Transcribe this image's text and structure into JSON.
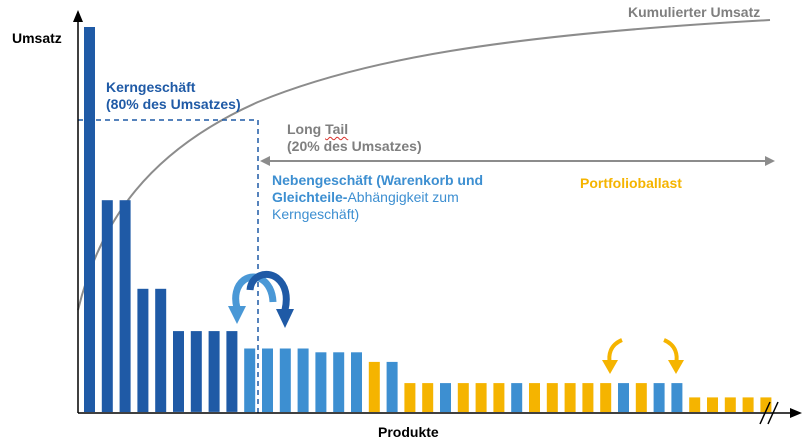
{
  "axes": {
    "y_label": "Umsatz",
    "x_label": "Produkte"
  },
  "curve_label": "Kumulierter Umsatz",
  "core": {
    "line1": "Kerngeschäft",
    "line2": "(80% des Umsatzes)"
  },
  "long_tail": {
    "word1": "Long",
    "word2": "Tail",
    "line2": "(20% des Umsatzes)"
  },
  "secondary": {
    "line1": "Nebengeschäft (Warenkorb und",
    "line2_bold": "Gleichteile-",
    "line2_rest": "Abhängigkeit zum",
    "line3": "Kerngeschäft)"
  },
  "portfolio_label": "Portfolioballast",
  "colors": {
    "dark_blue": "#1f5aa6",
    "light_blue": "#3d8fd1",
    "orange": "#f5b400",
    "gray": "#8c8c8c"
  },
  "bars": [
    {
      "value": 100,
      "color": "dark"
    },
    {
      "value": 55,
      "color": "dark"
    },
    {
      "value": 55,
      "color": "dark"
    },
    {
      "value": 32,
      "color": "dark"
    },
    {
      "value": 32,
      "color": "dark"
    },
    {
      "value": 21,
      "color": "dark"
    },
    {
      "value": 21,
      "color": "dark"
    },
    {
      "value": 21,
      "color": "dark"
    },
    {
      "value": 21,
      "color": "dark"
    },
    {
      "value": 16.5,
      "color": "light"
    },
    {
      "value": 16.5,
      "color": "light"
    },
    {
      "value": 16.5,
      "color": "light"
    },
    {
      "value": 16.5,
      "color": "light"
    },
    {
      "value": 15.5,
      "color": "light"
    },
    {
      "value": 15.5,
      "color": "light"
    },
    {
      "value": 15.5,
      "color": "light"
    },
    {
      "value": 13,
      "color": "orange"
    },
    {
      "value": 13,
      "color": "light"
    },
    {
      "value": 7.5,
      "color": "orange"
    },
    {
      "value": 7.5,
      "color": "orange"
    },
    {
      "value": 7.5,
      "color": "light"
    },
    {
      "value": 7.5,
      "color": "orange"
    },
    {
      "value": 7.5,
      "color": "orange"
    },
    {
      "value": 7.5,
      "color": "orange"
    },
    {
      "value": 7.5,
      "color": "light"
    },
    {
      "value": 7.5,
      "color": "orange"
    },
    {
      "value": 7.5,
      "color": "orange"
    },
    {
      "value": 7.5,
      "color": "orange"
    },
    {
      "value": 7.5,
      "color": "orange"
    },
    {
      "value": 7.5,
      "color": "orange"
    },
    {
      "value": 7.5,
      "color": "light"
    },
    {
      "value": 7.5,
      "color": "orange"
    },
    {
      "value": 7.5,
      "color": "light"
    },
    {
      "value": 7.5,
      "color": "light"
    },
    {
      "value": 3.8,
      "color": "orange"
    },
    {
      "value": 3.8,
      "color": "orange"
    },
    {
      "value": 3.8,
      "color": "orange"
    },
    {
      "value": 3.8,
      "color": "orange"
    },
    {
      "value": 3.8,
      "color": "orange"
    }
  ]
}
